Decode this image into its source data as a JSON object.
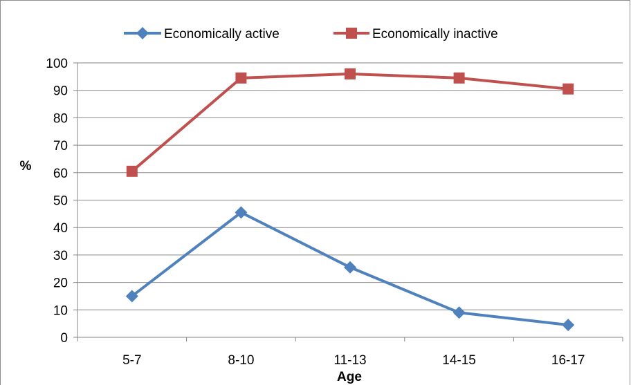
{
  "chart_data": {
    "type": "line",
    "categories": [
      "5-7",
      "8-10",
      "11-13",
      "14-15",
      "16-17"
    ],
    "series": [
      {
        "name": "Economically active",
        "values": [
          15,
          45.5,
          25.5,
          9,
          4.5
        ],
        "color": "#4f81bd",
        "marker": "diamond"
      },
      {
        "name": "Economically inactive",
        "values": [
          60.5,
          94.5,
          96,
          94.5,
          90.5
        ],
        "color": "#c0504d",
        "marker": "square"
      }
    ],
    "xlabel": "Age",
    "ylabel": "%",
    "ylim": [
      0,
      100
    ],
    "yticks": [
      0,
      10,
      20,
      30,
      40,
      50,
      60,
      70,
      80,
      90,
      100
    ],
    "grid": true,
    "legend_position": "top"
  }
}
